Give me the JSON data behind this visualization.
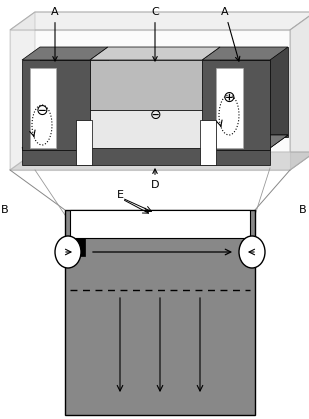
{
  "fig_width": 3.09,
  "fig_height": 4.19,
  "dpi": 100,
  "bg_color": "#ffffff",
  "dark_gray": "#555555",
  "mid_gray": "#888888",
  "light_gray": "#bbbbbb",
  "very_light_gray": "#dddddd",
  "white": "#ffffff",
  "black": "#000000",
  "labels": {
    "A_left": "A",
    "A_right": "A",
    "B_left": "B",
    "B_right": "B",
    "C": "C",
    "D": "D",
    "E": "E"
  },
  "font_size": 8
}
